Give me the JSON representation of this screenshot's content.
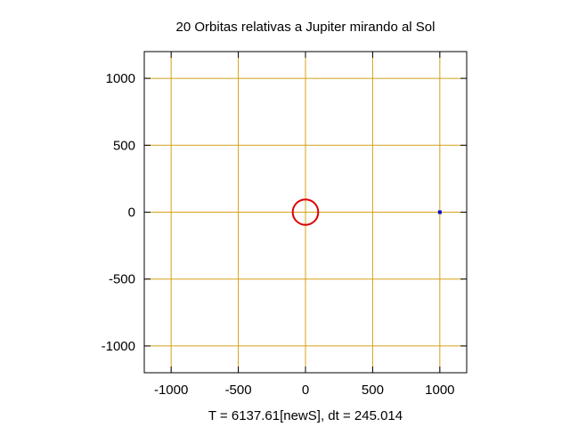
{
  "chart_data": {
    "type": "scatter",
    "title": "20 Orbitas relativas a Jupiter mirando al Sol",
    "xlabel": "T = 6137.61[newS], dt = 245.014",
    "ylabel": "",
    "xlim": [
      -1200,
      1200
    ],
    "ylim": [
      -1200,
      1200
    ],
    "xticks": [
      -1000,
      -500,
      0,
      500,
      1000
    ],
    "yticks": [
      -1000,
      -500,
      0,
      500,
      1000
    ],
    "xtick_labels": [
      "-1000",
      "-500",
      "0",
      "500",
      "1000"
    ],
    "ytick_labels": [
      "-1000",
      "-500",
      "0",
      "500",
      "1000"
    ],
    "grid": true,
    "grid_color": "#d4a017",
    "series": [
      {
        "marker": "circle-ring",
        "color": "#dd0000",
        "center": [
          0,
          0
        ],
        "radius": 95
      },
      {
        "marker": "square",
        "color": "#0000cc",
        "x": [
          1000
        ],
        "y": [
          0
        ]
      }
    ]
  }
}
